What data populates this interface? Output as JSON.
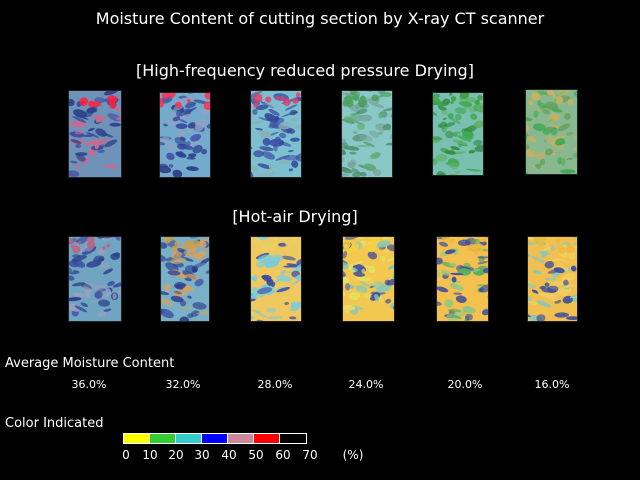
{
  "title": "Moisture Content of cutting section by X-ray CT scanner",
  "high_frequency": {
    "title": "[High-frequency reduced pressure Drying]",
    "samples": [
      {
        "base": "#6f93b8",
        "blobs": [
          "#2b3f8a",
          "#3a4aa0",
          "#c86a8e"
        ],
        "accent": "#ff2040"
      },
      {
        "base": "#74aacb",
        "blobs": [
          "#2b3f8a",
          "#3a4aa0",
          "#9aa0c0"
        ],
        "accent": "#ff3050"
      },
      {
        "base": "#7cc0d0",
        "blobs": [
          "#34489a",
          "#3f52a8",
          "#8ab0b8"
        ],
        "accent": "#e04070"
      },
      {
        "base": "#8ac8c8",
        "blobs": [
          "#5ea870",
          "#7aa8a0",
          "#4b8a6a"
        ],
        "accent": "#4fa060"
      },
      {
        "base": "#7ac0b0",
        "blobs": [
          "#3ea850",
          "#5fb060",
          "#2e8a40"
        ],
        "accent": "#3aa040"
      },
      {
        "base": "#88b890",
        "blobs": [
          "#3ea850",
          "#c8b060",
          "#6aa060"
        ],
        "accent": "#d0b060"
      }
    ]
  },
  "hot_air": {
    "title": "[Hot-air Drying]",
    "samples": [
      {
        "base": "#6fa5c0",
        "blobs": [
          "#2b3f8a",
          "#3a4aa0",
          "#9aa0c0"
        ],
        "accent": "#c06080"
      },
      {
        "base": "#78b0c8",
        "blobs": [
          "#2b3f8a",
          "#3a4aa0",
          "#d8a060"
        ],
        "accent": "#c8a050"
      },
      {
        "base": "#f0c860",
        "blobs": [
          "#70d0e0",
          "#3a4aa0",
          "#80c8d8"
        ],
        "accent": "#e8d060"
      },
      {
        "base": "#f2c850",
        "blobs": [
          "#80c8c0",
          "#3a4aa0",
          "#e8e060"
        ],
        "accent": "#f4d040"
      },
      {
        "base": "#f4c050",
        "blobs": [
          "#50b060",
          "#3a4aa0",
          "#90c880"
        ],
        "accent": "#f0b840"
      },
      {
        "base": "#f2c050",
        "blobs": [
          "#80c8c0",
          "#3a4aa0",
          "#f0d060"
        ],
        "accent": "#f0b840"
      }
    ]
  },
  "avg_label": "Average Moisture Content",
  "avg_values": [
    "36.0%",
    "32.0%",
    "28.0%",
    "24.0%",
    "20.0%",
    "16.0%"
  ],
  "color_label": "Color Indicated",
  "colorbar": [
    "#ffff00",
    "#33cc33",
    "#33cccc",
    "#0000ff",
    "#cc8899",
    "#ff0000",
    "#000000"
  ],
  "ticks": [
    "0",
    "10",
    "20",
    "30",
    "40",
    "50",
    "60",
    "70"
  ],
  "unit": "(%)"
}
